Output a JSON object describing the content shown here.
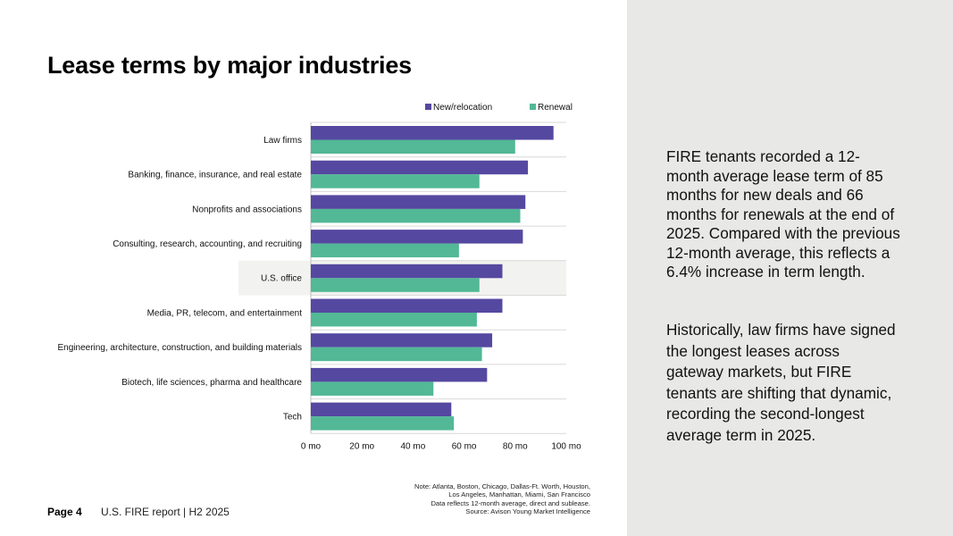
{
  "title": "Lease terms by major industries",
  "chart_data": {
    "type": "bar",
    "orientation": "horizontal",
    "categories": [
      "Law firms",
      "Banking, finance, insurance, and real estate",
      "Nonprofits and associations",
      "Consulting, research, accounting, and recruiting",
      "U.S. office",
      "Media, PR, telecom, and entertainment",
      "Engineering, architecture, construction, and building materials",
      "Biotech, life sciences, pharma and healthcare",
      "Tech"
    ],
    "series": [
      {
        "name": "New/relocation",
        "color": "#5548a0",
        "values": [
          95,
          85,
          84,
          83,
          75,
          75,
          71,
          69,
          55
        ]
      },
      {
        "name": "Renewal",
        "color": "#52b896",
        "values": [
          80,
          66,
          82,
          58,
          66,
          65,
          67,
          48,
          56
        ]
      }
    ],
    "highlight_category": "U.S. office",
    "x_ticks": [
      "0 mo",
      "20 mo",
      "40 mo",
      "60 mo",
      "80 mo",
      "100 mo"
    ],
    "xlim": [
      0,
      100
    ],
    "xlabel": "",
    "ylabel": "",
    "legend_position": "top-right"
  },
  "text": {
    "paragraph_1": "FIRE tenants recorded a 12-month average lease term of 85 months for new deals and 66 months for renewals at the end of 2025. Compared with the previous 12-month average, this reflects a 6.4% increase in term length.",
    "paragraph_2": "Historically, law firms have signed the longest leases across gateway markets, but FIRE tenants are shifting that dynamic, recording the second-longest average term in 2025."
  },
  "note": {
    "line_1": "Note: Atlanta, Boston, Chicago, Dallas-Ft. Worth, Houston,",
    "line_2": "Los Angeles, Manhattan, Miami, San Francisco",
    "line_3": "Data reflects 12-month average, direct and sublease.",
    "line_4": "Source: Avison Young Market Intelligence"
  },
  "footer": {
    "page_label": "Page 4",
    "report_label": "U.S. FIRE report | H2 2025"
  },
  "colors": {
    "panel_background": "#e8e8e6",
    "highlight_band": "#f2f2f0",
    "gridline": "#d9d9d9"
  }
}
